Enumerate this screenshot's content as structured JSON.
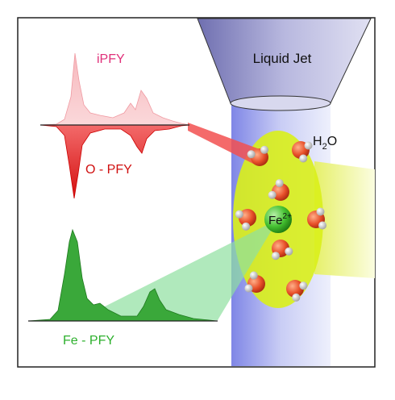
{
  "labels": {
    "ipfy": "iPFY",
    "opfy": "O - PFY",
    "fepfy": "Fe - PFY",
    "liquid_jet": "Liquid Jet",
    "water": {
      "base": "H",
      "sub": "2",
      "tail": "O"
    },
    "iron": {
      "base": "Fe",
      "sup": "2+"
    }
  }
}
